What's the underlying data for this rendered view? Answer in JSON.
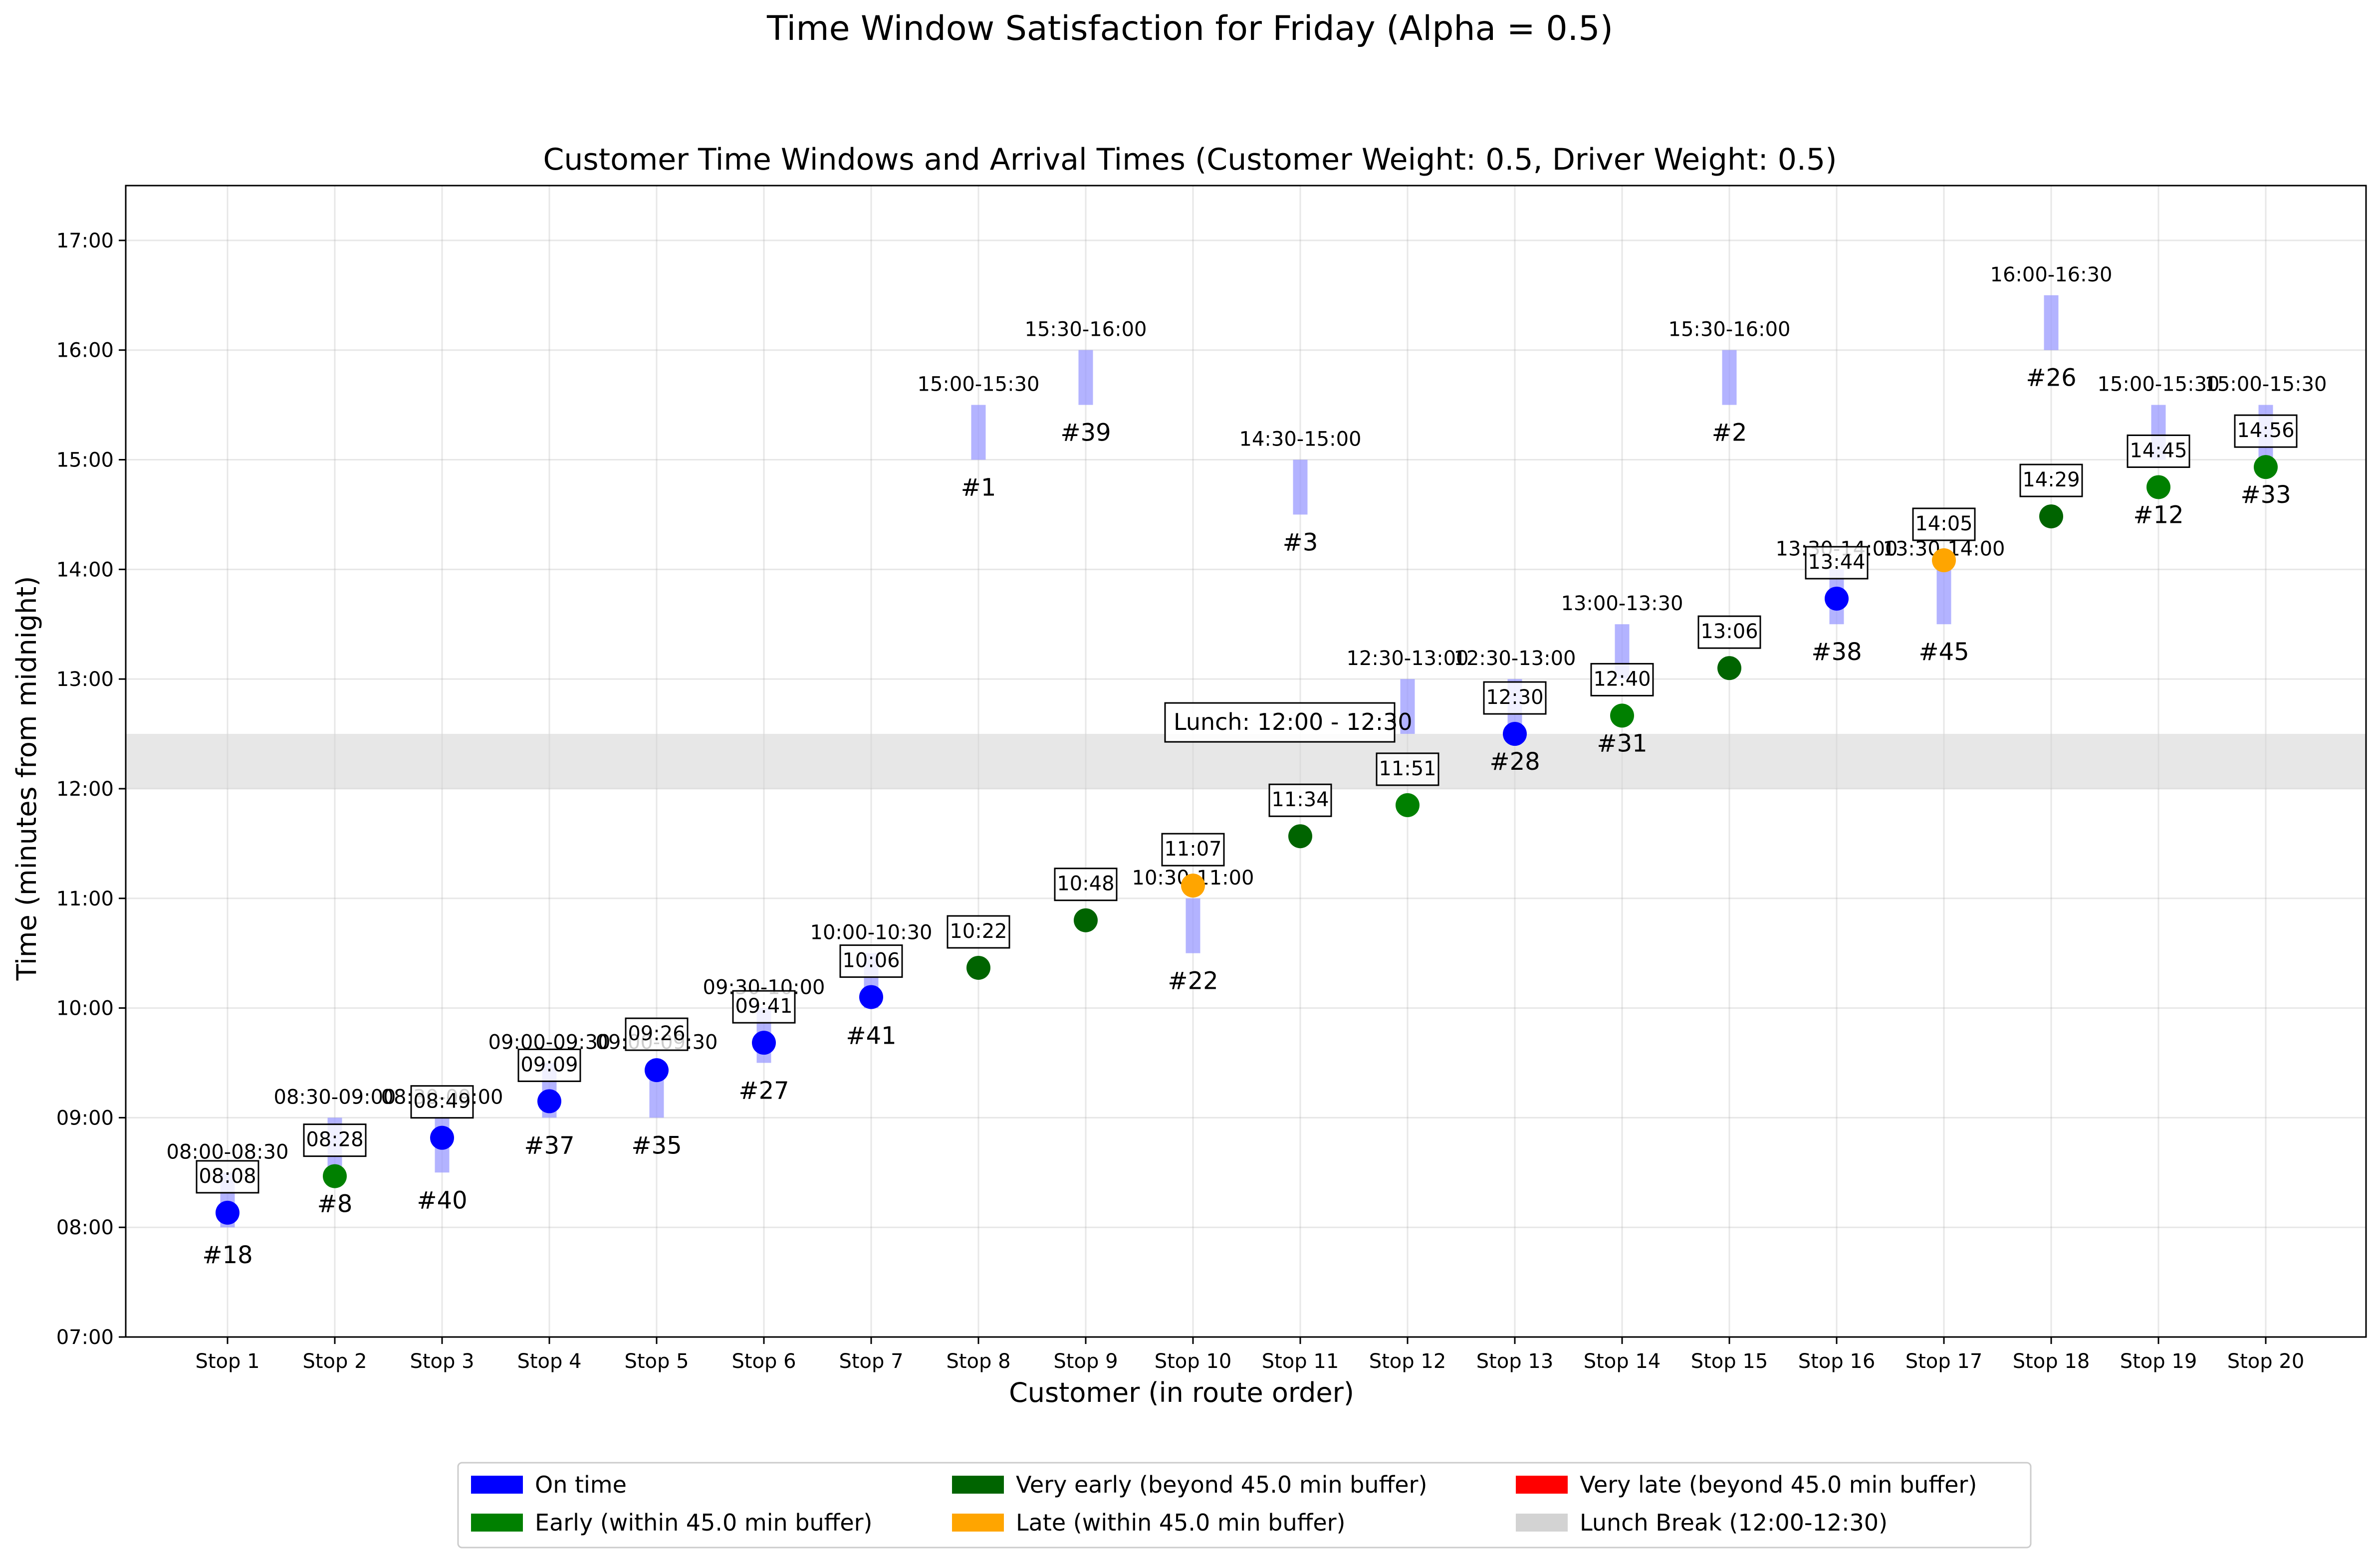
{
  "figure": {
    "suptitle": "Time Window Satisfaction for Friday (Alpha = 0.5)"
  },
  "chart_data": {
    "type": "scatter",
    "title": "Customer Time Windows and Arrival Times (Customer Weight: 0.5, Driver Weight: 0.5)",
    "xlabel": "Customer (in route order)",
    "ylabel": "Time (minutes from midnight)",
    "categories": [
      "Stop 1",
      "Stop 2",
      "Stop 3",
      "Stop 4",
      "Stop 5",
      "Stop 6",
      "Stop 7",
      "Stop 8",
      "Stop 9",
      "Stop 10",
      "Stop 11",
      "Stop 12",
      "Stop 13",
      "Stop 14",
      "Stop 15",
      "Stop 16",
      "Stop 17",
      "Stop 18",
      "Stop 19",
      "Stop 20"
    ],
    "ylim": [
      420,
      1050
    ],
    "yticks": [
      {
        "value": 420,
        "label": "07:00"
      },
      {
        "value": 480,
        "label": "08:00"
      },
      {
        "value": 540,
        "label": "09:00"
      },
      {
        "value": 600,
        "label": "10:00"
      },
      {
        "value": 660,
        "label": "11:00"
      },
      {
        "value": 720,
        "label": "12:00"
      },
      {
        "value": 780,
        "label": "13:00"
      },
      {
        "value": 840,
        "label": "14:00"
      },
      {
        "value": 900,
        "label": "15:00"
      },
      {
        "value": 960,
        "label": "16:00"
      },
      {
        "value": 1020,
        "label": "17:00"
      }
    ],
    "grid": true,
    "lunch": {
      "start": 720,
      "end": 750,
      "label": "Lunch: 12:00 - 12:30"
    },
    "stops": [
      {
        "stop": "Stop 1",
        "customer": "#18",
        "window": [
          480,
          510
        ],
        "window_label": "08:00-08:30",
        "arrival": 488,
        "arrival_label": "08:08",
        "status": "on_time"
      },
      {
        "stop": "Stop 2",
        "customer": "#8",
        "window": [
          510,
          540
        ],
        "window_label": "08:30-09:00",
        "arrival": 508,
        "arrival_label": "08:28",
        "status": "early"
      },
      {
        "stop": "Stop 3",
        "customer": "#40",
        "window": [
          510,
          540
        ],
        "window_label": "08:30-09:00",
        "arrival": 529,
        "arrival_label": "08:49",
        "status": "on_time"
      },
      {
        "stop": "Stop 4",
        "customer": "#37",
        "window": [
          540,
          570
        ],
        "window_label": "09:00-09:30",
        "arrival": 549,
        "arrival_label": "09:09",
        "status": "on_time"
      },
      {
        "stop": "Stop 5",
        "customer": "#35",
        "window": [
          540,
          570
        ],
        "window_label": "09:00-09:30",
        "arrival": 566,
        "arrival_label": "09:26",
        "status": "on_time"
      },
      {
        "stop": "Stop 6",
        "customer": "#27",
        "window": [
          570,
          600
        ],
        "window_label": "09:30-10:00",
        "arrival": 581,
        "arrival_label": "09:41",
        "status": "on_time"
      },
      {
        "stop": "Stop 7",
        "customer": "#41",
        "window": [
          600,
          630
        ],
        "window_label": "10:00-10:30",
        "arrival": 606,
        "arrival_label": "10:06",
        "status": "on_time"
      },
      {
        "stop": "Stop 8",
        "customer": "",
        "window": null,
        "window_label": "",
        "arrival": 622,
        "arrival_label": "10:22",
        "status": "very_early"
      },
      {
        "stop": "Stop 9",
        "customer": "",
        "window": null,
        "window_label": "",
        "arrival": 648,
        "arrival_label": "10:48",
        "status": "very_early"
      },
      {
        "stop": "Stop 10",
        "customer": "#22",
        "window": [
          630,
          660
        ],
        "window_label": "10:30-11:00",
        "arrival": 667,
        "arrival_label": "11:07",
        "status": "late"
      },
      {
        "stop": "Stop 11",
        "customer": "",
        "window": null,
        "window_label": "",
        "arrival": 694,
        "arrival_label": "11:34",
        "status": "very_early"
      },
      {
        "stop": "Stop 12",
        "customer": "",
        "window": null,
        "window_label": "",
        "arrival": 711,
        "arrival_label": "11:51",
        "status": "early"
      },
      {
        "stop": "Stop 13",
        "customer": "#28",
        "window": [
          750,
          780
        ],
        "window_label": "12:30-13:00",
        "arrival": 750,
        "arrival_label": "12:30",
        "status": "on_time"
      },
      {
        "stop": "Stop 14",
        "customer": "#31",
        "window": [
          780,
          810
        ],
        "window_label": "13:00-13:30",
        "arrival": 760,
        "arrival_label": "12:40",
        "status": "early"
      },
      {
        "stop": "Stop 15",
        "customer": "",
        "window": null,
        "window_label": "",
        "arrival": 786,
        "arrival_label": "13:06",
        "status": "very_early"
      },
      {
        "stop": "Stop 16",
        "customer": "#38",
        "window": [
          810,
          840
        ],
        "window_label": "13:30-14:00",
        "arrival": 824,
        "arrival_label": "13:44",
        "status": "on_time"
      },
      {
        "stop": "Stop 17",
        "customer": "#45",
        "window": [
          810,
          840
        ],
        "window_label": "13:30-14:00",
        "arrival": 845,
        "arrival_label": "14:05",
        "status": "late"
      },
      {
        "stop": "Stop 18",
        "customer": "",
        "window": null,
        "window_label": "",
        "arrival": 869,
        "arrival_label": "14:29",
        "status": "very_early"
      },
      {
        "stop": "Stop 19",
        "customer": "#12",
        "window": [
          900,
          930
        ],
        "window_label": "15:00-15:30",
        "arrival": 885,
        "arrival_label": "14:45",
        "status": "early"
      },
      {
        "stop": "Stop 20",
        "customer": "#33",
        "window": [
          900,
          930
        ],
        "window_label": "15:00-15:30",
        "arrival": 896,
        "arrival_label": "14:56",
        "status": "early"
      }
    ],
    "unvisited_windows": [
      {
        "column": 8,
        "customer": "#1",
        "window": [
          900,
          930
        ],
        "window_label": "15:00-15:30"
      },
      {
        "column": 9,
        "customer": "#39",
        "window": [
          930,
          960
        ],
        "window_label": "15:30-16:00"
      },
      {
        "column": 11,
        "customer": "#3",
        "window": [
          870,
          900
        ],
        "window_label": "14:30-15:00"
      },
      {
        "column": 12,
        "customer": "",
        "window": [
          750,
          780
        ],
        "window_label": "12:30-13:00"
      },
      {
        "column": 15,
        "customer": "#2",
        "window": [
          930,
          960
        ],
        "window_label": "15:30-16:00"
      },
      {
        "column": 18,
        "customer": "#26",
        "window": [
          960,
          990
        ],
        "window_label": "16:00-16:30"
      }
    ],
    "colors": {
      "on_time": "#0000ff",
      "early": "#008000",
      "very_early": "#006400",
      "late": "#ffa500",
      "very_late": "#ff0000",
      "lunch": "#d3d3d3",
      "window_bar": "#9999ff"
    },
    "legend": {
      "placement": "bottom-center",
      "items": [
        {
          "key": "on_time",
          "label": "On time"
        },
        {
          "key": "early",
          "label": "Early (within 45.0 min buffer)"
        },
        {
          "key": "very_early",
          "label": "Very early (beyond 45.0 min buffer)"
        },
        {
          "key": "late",
          "label": "Late (within 45.0 min buffer)"
        },
        {
          "key": "very_late",
          "label": "Very late (beyond 45.0 min buffer)"
        },
        {
          "key": "lunch",
          "label": "Lunch Break (12:00-12:30)"
        }
      ]
    }
  }
}
